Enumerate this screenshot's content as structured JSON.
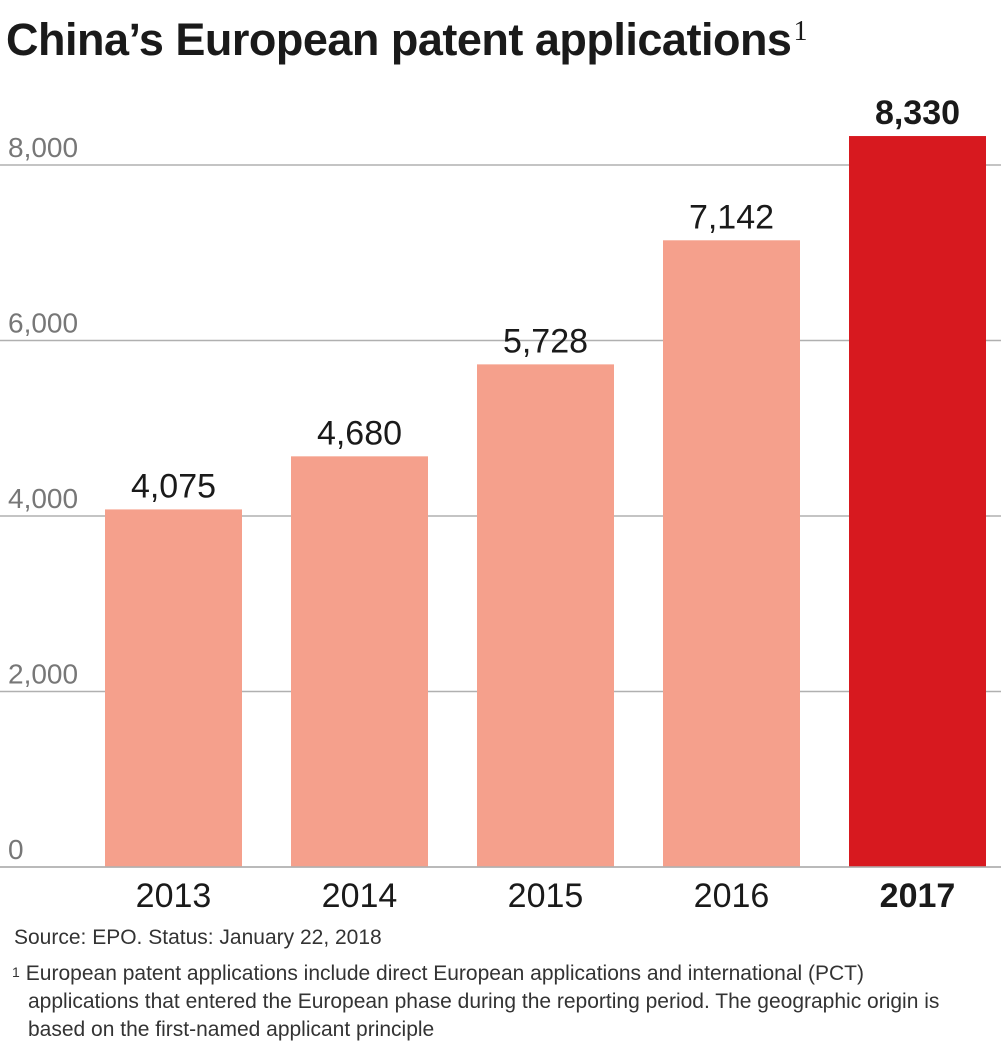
{
  "chart_data": {
    "type": "bar",
    "title": "China’s European patent applications",
    "title_footnote_mark": "1",
    "categories": [
      "2013",
      "2014",
      "2015",
      "2016",
      "2017"
    ],
    "values": [
      4075,
      4680,
      5728,
      7142,
      8330
    ],
    "value_labels": [
      "4,075",
      "4,680",
      "5,728",
      "7,142",
      "8,330"
    ],
    "highlight_index": 4,
    "colors": {
      "bar": "#f5a08c",
      "highlight": "#d7191f",
      "grid": "#b0b0b0"
    },
    "yticks": [
      0,
      2000,
      4000,
      6000,
      8000
    ],
    "ytick_labels": [
      "0",
      "2,000",
      "4,000",
      "6,000",
      "8,000"
    ],
    "ylim": [
      0,
      8000
    ],
    "grid": true,
    "xlabel": "",
    "ylabel": ""
  },
  "source": "Source: EPO. Status: January 22, 2018",
  "footnote": {
    "mark": "1",
    "text": "European patent applications include direct European applications and international (PCT) applications that entered the European phase during the reporting period. The geographic origin is based on the first-named applicant principle"
  }
}
